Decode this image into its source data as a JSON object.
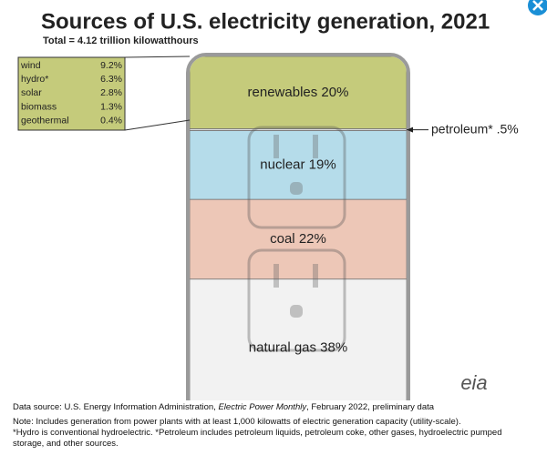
{
  "chart_data": {
    "type": "stacked_column",
    "title": "Sources of U.S. electricity generation, 2021",
    "subtitle": "Total = 4.12 trillion kilowatthours",
    "categories": [
      "renewables",
      "petroleum*",
      "nuclear",
      "coal",
      "natural gas"
    ],
    "values": [
      20,
      0.5,
      19,
      22,
      38
    ],
    "value_labels": [
      "20%",
      ".5%",
      "19%",
      "22%",
      "38%"
    ],
    "colors": [
      "#c5cb7b",
      "#dcdcdc",
      "#b5dcea",
      "#edc7b7",
      "#f2f2f2"
    ],
    "breakdown": {
      "rows": [
        [
          "wind",
          "9.2%"
        ],
        [
          "hydro*",
          "6.3%"
        ],
        [
          "solar",
          "2.8%"
        ],
        [
          "biomass",
          "1.3%"
        ],
        [
          "geothermal",
          "0.4%"
        ]
      ]
    },
    "source": [
      "Data source: U.S. Energy Information Administration, ",
      "Electric Power Monthly",
      ", February 2022, preliminary data"
    ],
    "notes": [
      "Note: Includes generation from power plants with at least 1,000 kilowatts of electric generation capacity (utility-scale).",
      "*Hydro is conventional hydroelectric. *Petroleum includes petroleum liquids, petroleum coke, other gases, hydroelectric pumped storage, and other sources."
    ],
    "logo": "eia"
  }
}
